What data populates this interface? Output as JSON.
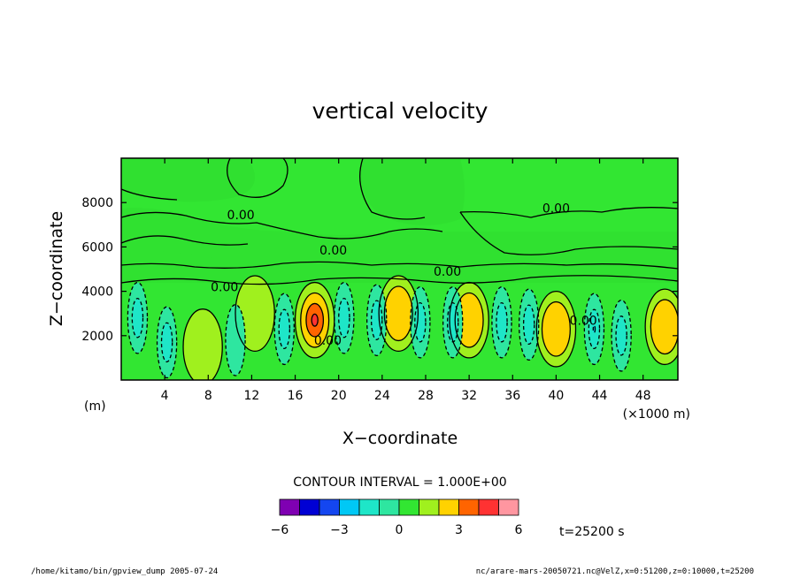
{
  "chart_data": {
    "type": "contour",
    "title": "vertical velocity",
    "xlabel": "X−coordinate",
    "ylabel": "Z−coordinate",
    "x_unit_label": "(×1000 m)",
    "y_unit_label": "(m)",
    "xlim": [
      0,
      51.2
    ],
    "ylim": [
      0,
      10000
    ],
    "x_ticks": [
      4,
      8,
      12,
      16,
      20,
      24,
      28,
      32,
      36,
      40,
      44,
      48
    ],
    "x_tick_labels": [
      "4",
      "8",
      "12",
      "16",
      "20",
      "24",
      "28",
      "32",
      "36",
      "40",
      "44",
      "48"
    ],
    "y_ticks": [
      2000,
      4000,
      6000,
      8000
    ],
    "y_tick_labels": [
      "2000",
      "4000",
      "6000",
      "8000"
    ],
    "contour_interval_text": "CONTOUR INTERVAL = 1.000E+00",
    "contour_labels": [
      {
        "text": "0.00",
        "x": 11,
        "z": 7250
      },
      {
        "text": "0.00",
        "x": 19.5,
        "z": 5650
      },
      {
        "text": "0.00",
        "x": 40,
        "z": 7550
      },
      {
        "text": "0.00",
        "x": 30,
        "z": 4700
      },
      {
        "text": "0.00",
        "x": 9.5,
        "z": 4000
      },
      {
        "text": "0.00",
        "x": 19,
        "z": 1600
      },
      {
        "text": "0.00",
        "x": 42.5,
        "z": 2500
      }
    ],
    "colorbar": {
      "colors": [
        "#7f00b2",
        "#0000d4",
        "#1446f0",
        "#00c8f5",
        "#1ee6c8",
        "#2ee6a0",
        "#32e632",
        "#a0f01e",
        "#ffd200",
        "#ff6400",
        "#ff3232",
        "#ff96a0"
      ],
      "tick_values": [
        -6,
        -3,
        0,
        3,
        6
      ],
      "tick_labels": [
        "−6",
        "−3",
        "0",
        "3",
        "6"
      ]
    },
    "background_field_color": "#32e632",
    "updraft_centers": [
      {
        "x": 17.8,
        "z": 2700,
        "max": 4
      },
      {
        "x": 25.5,
        "z": 3000,
        "max": 2
      },
      {
        "x": 32,
        "z": 2700,
        "max": 2
      },
      {
        "x": 40,
        "z": 2300,
        "max": 2
      },
      {
        "x": 12.3,
        "z": 3000,
        "max": 1
      },
      {
        "x": 50,
        "z": 2400,
        "max": 2
      },
      {
        "x": 7.5,
        "z": 1500,
        "max": 1
      }
    ],
    "downdraft_centers": [
      {
        "x": 1.5,
        "z": 2800,
        "min": -2
      },
      {
        "x": 4.2,
        "z": 1700,
        "min": -2
      },
      {
        "x": 10.5,
        "z": 1800,
        "min": -1
      },
      {
        "x": 15,
        "z": 2300,
        "min": -2
      },
      {
        "x": 20.5,
        "z": 2800,
        "min": -2
      },
      {
        "x": 23.5,
        "z": 2700,
        "min": -2
      },
      {
        "x": 27.5,
        "z": 2600,
        "min": -2
      },
      {
        "x": 30.5,
        "z": 2600,
        "min": -2
      },
      {
        "x": 35,
        "z": 2600,
        "min": -2
      },
      {
        "x": 37.5,
        "z": 2500,
        "min": -2
      },
      {
        "x": 43.5,
        "z": 2300,
        "min": -3
      },
      {
        "x": 46,
        "z": 2000,
        "min": -2
      }
    ]
  },
  "time_label": "t=25200 s",
  "footer": {
    "left": "/home/kitamo/bin/gpview_dump  2005-07-24",
    "right": "nc/arare-mars-20050721.nc@VelZ,x=0:51200,z=0:10000,t=25200"
  }
}
